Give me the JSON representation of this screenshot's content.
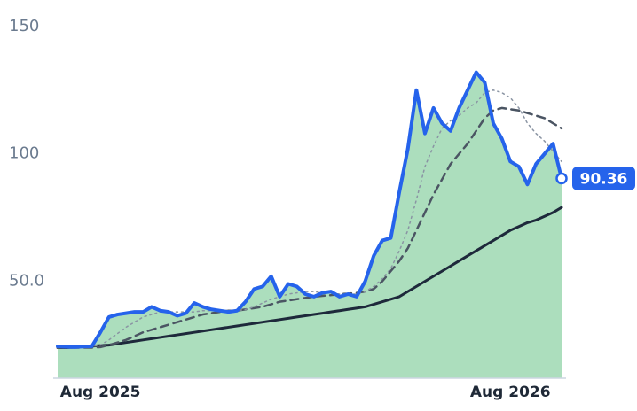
{
  "chart_data": {
    "type": "line",
    "categories": [
      null,
      null,
      null,
      null,
      null,
      "Aug 2025",
      null,
      null,
      null,
      null,
      null,
      null,
      null,
      null,
      null,
      null,
      null,
      null,
      null,
      null,
      null,
      null,
      null,
      null,
      null,
      null,
      null,
      null,
      null,
      null,
      null,
      null,
      null,
      null,
      null,
      null,
      null,
      null,
      null,
      null,
      null,
      null,
      null,
      null,
      null,
      null,
      null,
      null,
      null,
      null,
      null,
      null,
      null,
      "Aug 2026",
      null,
      null,
      null,
      null,
      null,
      null
    ],
    "series": [
      {
        "color": "#2563eb",
        "fill": "#9ed8b2",
        "style": "solid",
        "width": 4,
        "show_last_value": true,
        "values": [
          24.5,
          24.3,
          24.2,
          24.4,
          24.5,
          30,
          36,
          37,
          37.5,
          38,
          38,
          40,
          38.5,
          38,
          36.5,
          37.5,
          41.5,
          40,
          39,
          38.5,
          38,
          38.5,
          42,
          47,
          48,
          52,
          44,
          49,
          48,
          45,
          44,
          45.5,
          46,
          44,
          45,
          44,
          50,
          60,
          66,
          67,
          85,
          102,
          125,
          108,
          118,
          112,
          109,
          118,
          125,
          132,
          128,
          112,
          106,
          97,
          95,
          88,
          96,
          100,
          104,
          90.36
        ]
      },
      {
        "color": "#8a94a3",
        "style": "dotted",
        "width": 1.5,
        "values": [
          24,
          24,
          24,
          24.2,
          24.4,
          25,
          27,
          29.5,
          32,
          34,
          36,
          37,
          38,
          38,
          38,
          38,
          38,
          38.5,
          38.5,
          38.5,
          38.5,
          38.5,
          39,
          40,
          41.5,
          43,
          44,
          45,
          45.5,
          46,
          46,
          45.5,
          45.5,
          45,
          45,
          45,
          46,
          48,
          51,
          55,
          62,
          70,
          82,
          95,
          103,
          110,
          113,
          115,
          118,
          120,
          124,
          125,
          124,
          122,
          118,
          112,
          108,
          105,
          101,
          97
        ]
      },
      {
        "color": "#4b5563",
        "style": "dashed",
        "width": 2.5,
        "values": [
          24,
          24,
          24,
          24,
          24,
          24.2,
          25,
          26,
          27,
          28.5,
          30,
          31,
          32,
          33,
          34,
          35,
          36,
          37,
          37.5,
          38,
          38.5,
          38.5,
          39,
          39.5,
          40,
          41,
          42,
          42.5,
          43,
          43.5,
          44,
          44.3,
          44.6,
          45,
          45.2,
          45.5,
          46,
          47,
          50,
          54,
          58,
          63,
          70,
          77,
          84,
          90,
          96,
          100,
          104,
          109,
          114,
          117,
          118,
          117.5,
          117,
          116,
          115,
          114,
          112,
          110
        ]
      },
      {
        "color": "#1e293b",
        "style": "solid",
        "width": 3,
        "values": [
          24,
          24,
          24.2,
          24.4,
          24.6,
          24.8,
          25,
          25.5,
          26,
          26.5,
          27,
          27.5,
          28,
          28.5,
          29,
          29.5,
          30,
          30.5,
          31,
          31.5,
          32,
          32.5,
          33,
          33.5,
          34,
          34.5,
          35,
          35.5,
          36,
          36.5,
          37,
          37.5,
          38,
          38.5,
          39,
          39.5,
          40,
          41,
          42,
          43,
          44,
          46,
          48,
          50,
          52,
          54,
          56,
          58,
          60,
          62,
          64,
          66,
          68,
          70,
          71.5,
          73,
          74,
          75.5,
          77,
          79
        ]
      }
    ],
    "ylim": [
      12,
      160
    ],
    "yticks": [
      {
        "value": 50,
        "label": "50.0"
      },
      100,
      150
    ]
  }
}
